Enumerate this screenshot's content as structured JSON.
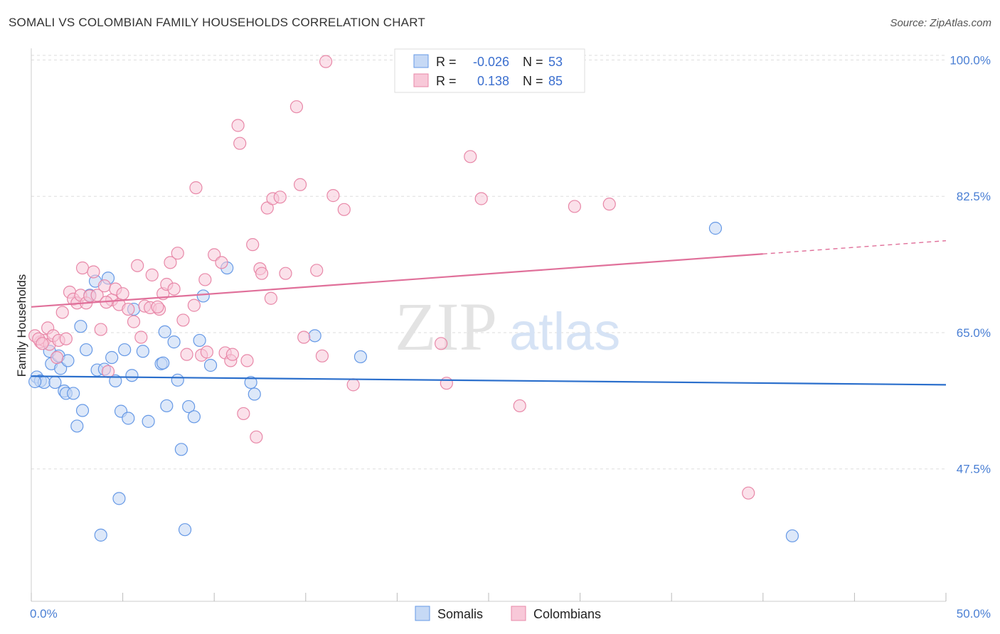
{
  "title": "SOMALI VS COLOMBIAN FAMILY HOUSEHOLDS CORRELATION CHART",
  "source": "Source: ZipAtlas.com",
  "watermark": {
    "zip": "ZIP",
    "atlas": "atlas"
  },
  "colors": {
    "somali": "#6699e6",
    "somali_fill": "#c6d9f5",
    "somali_line": "#2b6fcc",
    "colombian": "#e888a8",
    "colombian_fill": "#f8c8d8",
    "colombian_line": "#e0709a",
    "tick_text": "#4a7fd4",
    "grid": "#dddddd"
  },
  "legend_top": {
    "rows": [
      {
        "series": "Somalis",
        "r_label": "R =",
        "r_value": "-0.026",
        "n_label": "N =",
        "n_value": "53"
      },
      {
        "series": "Colombians",
        "r_label": "R =",
        "r_value": "0.138",
        "n_label": "N =",
        "n_value": "85"
      }
    ]
  },
  "chart_data": {
    "type": "scatter",
    "title": "SOMALI VS COLOMBIAN FAMILY HOUSEHOLDS CORRELATION CHART",
    "xlabel": "",
    "ylabel": "Family Households",
    "xlim": [
      0,
      50
    ],
    "ylim": [
      30.5,
      101.5
    ],
    "x_tick_labels": {
      "left": "0.0%",
      "right": "50.0%"
    },
    "y_ticks": [
      {
        "value": 47.5,
        "label": "47.5%"
      },
      {
        "value": 65.0,
        "label": "65.0%"
      },
      {
        "value": 82.5,
        "label": "82.5%"
      },
      {
        "value": 100.0,
        "label": "100.0%"
      }
    ],
    "legend": [
      "Somalis",
      "Colombians"
    ],
    "series": [
      {
        "name": "Somalis",
        "trend": {
          "x0": 0,
          "y0": 59.4,
          "x1": 50,
          "y1": 58.3
        },
        "points": [
          [
            0.3,
            59.3
          ],
          [
            0.5,
            58.8
          ],
          [
            0.7,
            58.6
          ],
          [
            1.0,
            62.6
          ],
          [
            1.1,
            61.0
          ],
          [
            1.3,
            58.6
          ],
          [
            1.5,
            62.0
          ],
          [
            1.6,
            60.4
          ],
          [
            1.8,
            57.5
          ],
          [
            1.9,
            57.2
          ],
          [
            2.0,
            61.4
          ],
          [
            2.3,
            57.2
          ],
          [
            2.5,
            53.0
          ],
          [
            2.7,
            65.8
          ],
          [
            2.8,
            55.0
          ],
          [
            3.0,
            62.8
          ],
          [
            3.2,
            69.8
          ],
          [
            3.5,
            71.6
          ],
          [
            3.6,
            60.2
          ],
          [
            3.8,
            39.0
          ],
          [
            4.0,
            60.3
          ],
          [
            4.2,
            72.0
          ],
          [
            4.4,
            61.8
          ],
          [
            4.6,
            58.8
          ],
          [
            4.8,
            43.7
          ],
          [
            4.9,
            54.9
          ],
          [
            5.1,
            62.8
          ],
          [
            5.3,
            54.0
          ],
          [
            5.5,
            59.5
          ],
          [
            5.6,
            68.0
          ],
          [
            6.1,
            62.6
          ],
          [
            6.4,
            53.6
          ],
          [
            7.1,
            61.0
          ],
          [
            7.3,
            65.1
          ],
          [
            7.4,
            55.6
          ],
          [
            7.8,
            63.8
          ],
          [
            8.0,
            58.9
          ],
          [
            8.2,
            50.0
          ],
          [
            8.4,
            39.7
          ],
          [
            8.6,
            55.5
          ],
          [
            8.9,
            54.2
          ],
          [
            9.2,
            64.0
          ],
          [
            9.4,
            69.7
          ],
          [
            9.8,
            60.8
          ],
          [
            10.7,
            73.3
          ],
          [
            12.0,
            58.6
          ],
          [
            12.2,
            57.1
          ],
          [
            15.5,
            64.6
          ],
          [
            18.0,
            61.9
          ],
          [
            37.4,
            78.4
          ],
          [
            41.6,
            38.9
          ],
          [
            0.2,
            58.7
          ],
          [
            7.2,
            61.1
          ]
        ]
      },
      {
        "name": "Colombians",
        "trend": {
          "x0": 0,
          "y0": 68.3,
          "x1": 40,
          "y1": 75.1,
          "dash_x1": 50,
          "dash_y1": 76.8
        },
        "points": [
          [
            0.5,
            63.8
          ],
          [
            0.7,
            64.0
          ],
          [
            0.9,
            65.6
          ],
          [
            1.0,
            63.5
          ],
          [
            1.2,
            64.6
          ],
          [
            1.4,
            61.8
          ],
          [
            1.5,
            64.0
          ],
          [
            1.7,
            67.6
          ],
          [
            1.9,
            64.2
          ],
          [
            2.1,
            70.2
          ],
          [
            2.3,
            69.3
          ],
          [
            2.5,
            68.8
          ],
          [
            2.7,
            69.8
          ],
          [
            2.8,
            73.3
          ],
          [
            3.0,
            68.8
          ],
          [
            3.2,
            69.7
          ],
          [
            3.4,
            72.8
          ],
          [
            3.6,
            69.8
          ],
          [
            3.8,
            65.4
          ],
          [
            4.0,
            71.0
          ],
          [
            4.2,
            60.0
          ],
          [
            4.4,
            69.2
          ],
          [
            4.6,
            70.6
          ],
          [
            4.8,
            68.6
          ],
          [
            5.0,
            70.0
          ],
          [
            5.3,
            68.0
          ],
          [
            5.6,
            66.4
          ],
          [
            5.8,
            73.6
          ],
          [
            6.0,
            64.4
          ],
          [
            6.2,
            68.4
          ],
          [
            6.5,
            68.2
          ],
          [
            6.6,
            72.4
          ],
          [
            7.0,
            68.0
          ],
          [
            7.2,
            70.0
          ],
          [
            7.4,
            71.2
          ],
          [
            7.6,
            74.0
          ],
          [
            7.8,
            70.6
          ],
          [
            8.0,
            75.2
          ],
          [
            8.3,
            66.6
          ],
          [
            8.5,
            62.2
          ],
          [
            8.9,
            68.5
          ],
          [
            9.0,
            83.6
          ],
          [
            9.3,
            62.1
          ],
          [
            9.5,
            71.8
          ],
          [
            10.0,
            75.0
          ],
          [
            10.4,
            74.0
          ],
          [
            10.6,
            62.4
          ],
          [
            10.9,
            61.4
          ],
          [
            11.0,
            62.2
          ],
          [
            11.3,
            91.6
          ],
          [
            11.4,
            89.3
          ],
          [
            11.6,
            54.6
          ],
          [
            11.8,
            61.4
          ],
          [
            12.1,
            76.3
          ],
          [
            12.3,
            51.6
          ],
          [
            12.5,
            73.2
          ],
          [
            12.6,
            72.6
          ],
          [
            12.9,
            81.0
          ],
          [
            13.1,
            69.4
          ],
          [
            13.2,
            82.2
          ],
          [
            13.6,
            82.4
          ],
          [
            13.9,
            72.6
          ],
          [
            14.5,
            94.0
          ],
          [
            14.7,
            84.0
          ],
          [
            14.9,
            64.4
          ],
          [
            15.6,
            73.0
          ],
          [
            15.9,
            62.0
          ],
          [
            16.1,
            99.8
          ],
          [
            16.5,
            82.6
          ],
          [
            17.1,
            80.8
          ],
          [
            17.6,
            58.3
          ],
          [
            22.4,
            63.6
          ],
          [
            22.7,
            58.5
          ],
          [
            24.0,
            87.6
          ],
          [
            24.6,
            82.2
          ],
          [
            26.7,
            55.6
          ],
          [
            29.7,
            81.2
          ],
          [
            31.6,
            81.5
          ],
          [
            39.2,
            44.4
          ],
          [
            0.2,
            64.6
          ],
          [
            0.4,
            64.2
          ],
          [
            0.6,
            63.6
          ],
          [
            4.1,
            68.9
          ],
          [
            6.9,
            68.3
          ],
          [
            9.6,
            62.5
          ]
        ]
      }
    ]
  }
}
